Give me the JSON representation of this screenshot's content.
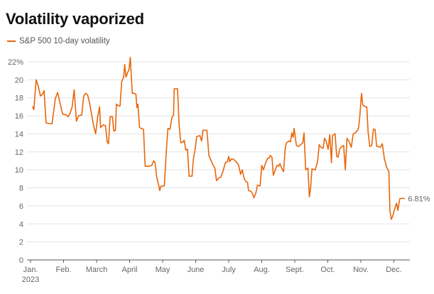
{
  "title": "Volatility vaporized",
  "colors": {
    "series": "#e8660a",
    "grid": "#e3e3e3",
    "axis": "#555555"
  },
  "chart_data": {
    "type": "line",
    "title": "Volatility vaporized",
    "xlabel": "",
    "ylabel": "",
    "ylim": [
      0,
      22
    ],
    "grid": true,
    "legend_position": "top-left",
    "y_ticks": [
      "0",
      "2",
      "4",
      "6",
      "8",
      "10",
      "12",
      "14",
      "16",
      "18",
      "20",
      "22%"
    ],
    "x_ticks": [
      {
        "label": "Jan.",
        "sub": "2023",
        "month": 0
      },
      {
        "label": "Feb.",
        "sub": "",
        "month": 1
      },
      {
        "label": "March",
        "sub": "",
        "month": 2
      },
      {
        "label": "April",
        "sub": "",
        "month": 3
      },
      {
        "label": "May",
        "sub": "",
        "month": 4
      },
      {
        "label": "June",
        "sub": "",
        "month": 5
      },
      {
        "label": "July",
        "sub": "",
        "month": 6
      },
      {
        "label": "Aug.",
        "sub": "",
        "month": 7
      },
      {
        "label": "Sept.",
        "sub": "",
        "month": 8
      },
      {
        "label": "Oct.",
        "sub": "",
        "month": 9
      },
      {
        "label": "Nov.",
        "sub": "",
        "month": 10
      },
      {
        "label": "Dec.",
        "sub": "",
        "month": 11
      }
    ],
    "end_label": "6.81%",
    "series": [
      {
        "name": "S&P 500 10-day volatility",
        "points": [
          [
            0.06,
            17.0
          ],
          [
            0.1,
            16.7
          ],
          [
            0.17,
            20.0
          ],
          [
            0.24,
            19.2
          ],
          [
            0.3,
            18.2
          ],
          [
            0.36,
            18.4
          ],
          [
            0.41,
            18.8
          ],
          [
            0.47,
            15.2
          ],
          [
            0.65,
            15.1
          ],
          [
            0.75,
            17.9
          ],
          [
            0.82,
            18.6
          ],
          [
            0.9,
            17.3
          ],
          [
            0.97,
            16.2
          ],
          [
            1.08,
            16.1
          ],
          [
            1.14,
            15.9
          ],
          [
            1.2,
            16.3
          ],
          [
            1.26,
            17.0
          ],
          [
            1.32,
            18.9
          ],
          [
            1.39,
            15.4
          ],
          [
            1.45,
            16.0
          ],
          [
            1.55,
            16.1
          ],
          [
            1.61,
            18.2
          ],
          [
            1.67,
            18.5
          ],
          [
            1.73,
            18.3
          ],
          [
            1.79,
            17.4
          ],
          [
            1.86,
            15.9
          ],
          [
            1.91,
            14.9
          ],
          [
            1.97,
            14.0
          ],
          [
            2.03,
            15.8
          ],
          [
            2.09,
            17.0
          ],
          [
            2.12,
            14.7
          ],
          [
            2.2,
            15.0
          ],
          [
            2.27,
            14.9
          ],
          [
            2.32,
            13.1
          ],
          [
            2.36,
            12.9
          ],
          [
            2.41,
            15.9
          ],
          [
            2.48,
            15.9
          ],
          [
            2.52,
            14.3
          ],
          [
            2.57,
            14.4
          ],
          [
            2.6,
            17.3
          ],
          [
            2.67,
            17.1
          ],
          [
            2.71,
            17.1
          ],
          [
            2.76,
            19.8
          ],
          [
            2.82,
            20.3
          ],
          [
            2.85,
            21.7
          ],
          [
            2.89,
            20.3
          ],
          [
            2.95,
            20.9
          ],
          [
            2.98,
            21.1
          ],
          [
            3.02,
            22.5
          ],
          [
            3.08,
            18.5
          ],
          [
            3.14,
            18.5
          ],
          [
            3.19,
            18.4
          ],
          [
            3.22,
            16.9
          ],
          [
            3.25,
            17.3
          ],
          [
            3.3,
            14.7
          ],
          [
            3.36,
            14.6
          ],
          [
            3.42,
            14.5
          ],
          [
            3.47,
            10.4
          ],
          [
            3.6,
            10.4
          ],
          [
            3.67,
            10.5
          ],
          [
            3.73,
            11.0
          ],
          [
            3.77,
            10.8
          ],
          [
            3.82,
            9.2
          ],
          [
            3.88,
            8.3
          ],
          [
            3.91,
            7.7
          ],
          [
            3.95,
            8.2
          ],
          [
            4.05,
            8.2
          ],
          [
            4.12,
            12.6
          ],
          [
            4.16,
            14.6
          ],
          [
            4.22,
            14.5
          ],
          [
            4.28,
            15.8
          ],
          [
            4.33,
            16.1
          ],
          [
            4.35,
            19.0
          ],
          [
            4.45,
            19.0
          ],
          [
            4.5,
            14.9
          ],
          [
            4.55,
            13.0
          ],
          [
            4.62,
            13.1
          ],
          [
            4.65,
            13.3
          ],
          [
            4.7,
            12.2
          ],
          [
            4.75,
            12.3
          ],
          [
            4.8,
            9.3
          ],
          [
            4.89,
            9.3
          ],
          [
            4.93,
            11.2
          ],
          [
            4.98,
            12.2
          ],
          [
            5.03,
            13.7
          ],
          [
            5.13,
            13.8
          ],
          [
            5.18,
            13.2
          ],
          [
            5.22,
            14.4
          ],
          [
            5.34,
            14.4
          ],
          [
            5.4,
            11.6
          ],
          [
            5.47,
            11.0
          ],
          [
            5.53,
            10.5
          ],
          [
            5.58,
            10.2
          ],
          [
            5.63,
            8.8
          ],
          [
            5.7,
            9.1
          ],
          [
            5.76,
            9.2
          ],
          [
            5.83,
            9.9
          ],
          [
            5.9,
            10.8
          ],
          [
            5.96,
            10.9
          ],
          [
            6.0,
            11.5
          ],
          [
            6.03,
            10.9
          ],
          [
            6.08,
            11.2
          ],
          [
            6.13,
            11.2
          ],
          [
            6.2,
            11.0
          ],
          [
            6.25,
            10.8
          ],
          [
            6.3,
            10.5
          ],
          [
            6.36,
            9.5
          ],
          [
            6.41,
            10.0
          ],
          [
            6.47,
            9.0
          ],
          [
            6.52,
            8.7
          ],
          [
            6.57,
            8.6
          ],
          [
            6.6,
            7.7
          ],
          [
            6.68,
            7.6
          ],
          [
            6.73,
            7.3
          ],
          [
            6.76,
            6.9
          ],
          [
            6.82,
            7.4
          ],
          [
            6.87,
            8.3
          ],
          [
            6.95,
            8.2
          ],
          [
            7.0,
            10.5
          ],
          [
            7.05,
            10.0
          ],
          [
            7.12,
            10.8
          ],
          [
            7.18,
            11.3
          ],
          [
            7.22,
            11.3
          ],
          [
            7.26,
            11.6
          ],
          [
            7.31,
            11.4
          ],
          [
            7.35,
            9.4
          ],
          [
            7.4,
            9.9
          ],
          [
            7.46,
            10.5
          ],
          [
            7.51,
            10.4
          ],
          [
            7.55,
            10.7
          ],
          [
            7.6,
            10.2
          ],
          [
            7.66,
            9.8
          ],
          [
            7.71,
            12.4
          ],
          [
            7.75,
            13.0
          ],
          [
            7.82,
            13.2
          ],
          [
            7.87,
            13.1
          ],
          [
            7.91,
            14.1
          ],
          [
            7.95,
            13.6
          ],
          [
            7.98,
            14.6
          ],
          [
            8.05,
            12.7
          ],
          [
            8.12,
            12.6
          ],
          [
            8.18,
            12.8
          ],
          [
            8.24,
            13.0
          ],
          [
            8.28,
            14.1
          ],
          [
            8.33,
            10.0
          ],
          [
            8.4,
            10.2
          ],
          [
            8.44,
            7.0
          ],
          [
            8.48,
            8.0
          ],
          [
            8.52,
            10.1
          ],
          [
            8.62,
            10.0
          ],
          [
            8.69,
            10.9
          ],
          [
            8.74,
            12.8
          ],
          [
            8.8,
            12.5
          ],
          [
            8.86,
            12.4
          ],
          [
            8.9,
            13.5
          ],
          [
            8.95,
            13.2
          ],
          [
            9.01,
            12.3
          ],
          [
            9.06,
            13.9
          ],
          [
            9.11,
            10.8
          ],
          [
            9.14,
            13.8
          ],
          [
            9.22,
            14.0
          ],
          [
            9.27,
            11.5
          ],
          [
            9.31,
            11.4
          ],
          [
            9.36,
            12.3
          ],
          [
            9.42,
            12.6
          ],
          [
            9.48,
            12.7
          ],
          [
            9.53,
            10.0
          ],
          [
            9.58,
            13.5
          ],
          [
            9.65,
            13.1
          ],
          [
            9.71,
            12.5
          ],
          [
            9.77,
            14.0
          ],
          [
            9.83,
            14.1
          ],
          [
            9.88,
            14.3
          ],
          [
            9.93,
            14.6
          ],
          [
            9.97,
            16.0
          ],
          [
            10.02,
            18.5
          ],
          [
            10.06,
            17.2
          ],
          [
            10.13,
            17.0
          ],
          [
            10.18,
            17.0
          ],
          [
            10.22,
            14.2
          ],
          [
            10.27,
            12.6
          ],
          [
            10.33,
            12.7
          ],
          [
            10.38,
            14.5
          ],
          [
            10.43,
            14.5
          ],
          [
            10.48,
            12.6
          ],
          [
            10.52,
            12.6
          ],
          [
            10.59,
            12.5
          ],
          [
            10.65,
            12.9
          ],
          [
            10.71,
            11.3
          ],
          [
            10.78,
            10.3
          ],
          [
            10.85,
            9.8
          ],
          [
            10.88,
            5.5
          ],
          [
            10.92,
            4.5
          ],
          [
            10.96,
            4.8
          ],
          [
            11.02,
            5.6
          ],
          [
            11.08,
            6.3
          ],
          [
            11.12,
            5.5
          ],
          [
            11.18,
            6.8
          ],
          [
            11.24,
            6.85
          ],
          [
            11.32,
            6.81
          ]
        ]
      }
    ]
  }
}
